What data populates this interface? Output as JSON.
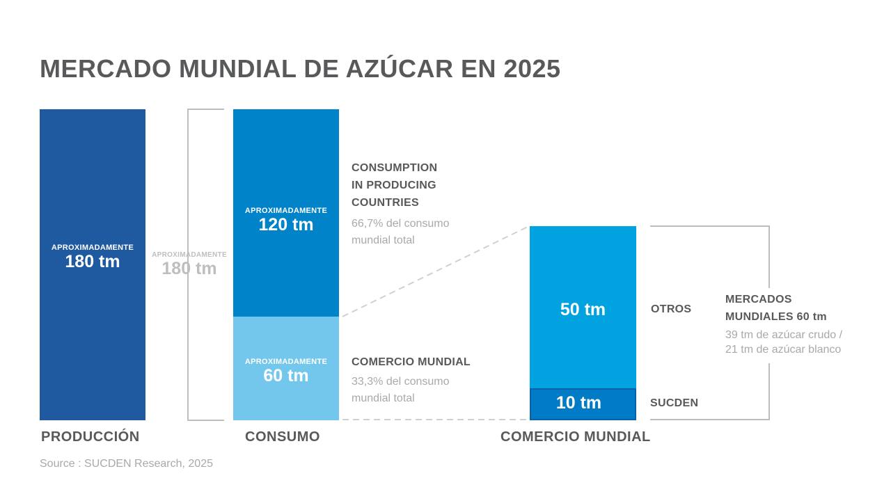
{
  "title": "MERCADO MUNDIAL DE AZÚCAR EN 2025",
  "source": "Source : SUCDEN Research, 2025",
  "colors": {
    "production": "#1f5aa0",
    "consumption_producing": "#0083c9",
    "consumption_trade": "#74c7ec",
    "trade_others": "#00a3e0",
    "trade_sucden": "#007bc5",
    "text_dark": "#58595b",
    "text_light": "#a7a9ac",
    "bracket": "#bcbec0"
  },
  "chart_data": {
    "type": "bar",
    "unit": "tm",
    "categories": [
      "PRODUCCIÓN",
      "CONSUMO",
      "COMERCIO MUNDIAL"
    ],
    "ylim": [
      0,
      180
    ],
    "grid": false,
    "production": {
      "value": 180,
      "caption": "APROXIMADAMENTE",
      "label": "180 tm",
      "axis_label": "PRODUCCIÓN"
    },
    "consumption_bracket": {
      "caption": "APROXIMADAMENTE",
      "label": "180 tm"
    },
    "consumption": {
      "axis_label": "CONSUMO",
      "segments": [
        {
          "name": "CONSUMPTION IN PRODUCING COUNTRIES",
          "value": 120,
          "caption": "APROXIMADAMENTE",
          "label": "120 tm",
          "heading": [
            "CONSUMPTION",
            "IN PRODUCING",
            "COUNTRIES"
          ],
          "desc": [
            "66,7% del consumo",
            "mundial total"
          ]
        },
        {
          "name": "COMERCIO MUNDIAL",
          "value": 60,
          "caption": "APROXIMADAMENTE",
          "label": "60 tm",
          "heading": [
            "COMERCIO MUNDIAL"
          ],
          "desc": [
            "33,3% del consumo",
            "mundial total"
          ]
        }
      ]
    },
    "trade": {
      "axis_label": "COMERCIO MUNDIAL",
      "total": 60,
      "segments": [
        {
          "name": "OTROS",
          "value": 50,
          "label": "50 tm"
        },
        {
          "name": "SUCDEN",
          "value": 10,
          "label": "10 tm"
        }
      ],
      "bracket_heading": [
        "MERCADOS",
        "MUNDIALES 60 tm"
      ],
      "bracket_desc": [
        "39 tm de azúcar crudo /",
        "21 tm de azúcar blanco"
      ]
    }
  }
}
